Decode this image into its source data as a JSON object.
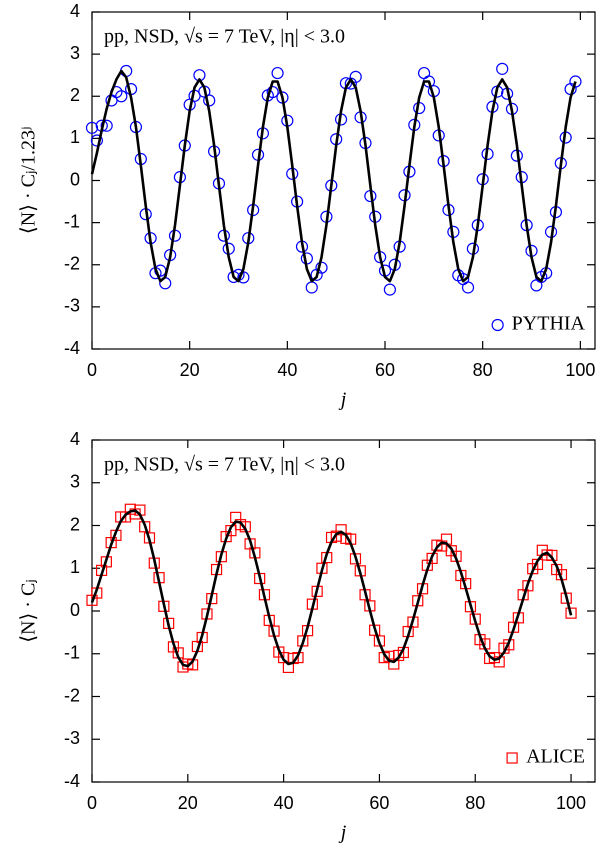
{
  "chart_data": [
    {
      "type": "scatter",
      "annotation": "pp, NSD, √s = 7 TeV, |η| < 3.0",
      "x_label": "j",
      "y_label": "⟨N⟩ · Cⱼ/1.23ʲ",
      "xlim": [
        0,
        103
      ],
      "ylim": [
        -4,
        4
      ],
      "xticks": [
        0,
        20,
        40,
        60,
        80,
        100
      ],
      "yticks": [
        -4,
        -3,
        -2,
        -1,
        0,
        1,
        2,
        3,
        4
      ],
      "legend": "lower right",
      "series": [
        {
          "name": "PYTHIA",
          "color": "#0000ff",
          "marker": "circle",
          "x": [
            0,
            1,
            2,
            3,
            4,
            5,
            6,
            7,
            8,
            9,
            10,
            11,
            12,
            13,
            14,
            15,
            16,
            17,
            18,
            19,
            20,
            21,
            22,
            23,
            24,
            25,
            26,
            27,
            28,
            29,
            30,
            31,
            32,
            33,
            34,
            35,
            36,
            37,
            38,
            39,
            40,
            41,
            42,
            43,
            44,
            45,
            46,
            47,
            48,
            49,
            50,
            51,
            52,
            53,
            54,
            55,
            56,
            57,
            58,
            59,
            60,
            61,
            62,
            63,
            64,
            65,
            66,
            67,
            68,
            69,
            70,
            71,
            72,
            73,
            74,
            75,
            76,
            77,
            78,
            79,
            80,
            81,
            82,
            83,
            84,
            85,
            86,
            87,
            88,
            89,
            90,
            91,
            92,
            93,
            94,
            95,
            96,
            97,
            98,
            99
          ],
          "values": [
            1.25,
            0.95,
            1.3,
            1.3,
            1.9,
            2.1,
            2.0,
            2.6,
            2.17,
            1.27,
            0.51,
            -0.8,
            -1.37,
            -2.2,
            -2.14,
            -2.44,
            -1.77,
            -1.31,
            0.08,
            0.83,
            1.8,
            2.01,
            2.5,
            2.11,
            1.9,
            0.69,
            -0.07,
            -1.31,
            -1.62,
            -2.29,
            -2.24,
            -2.3,
            -1.37,
            -0.7,
            0.61,
            1.12,
            2.02,
            2.1,
            2.55,
            1.97,
            1.42,
            0.16,
            -0.5,
            -1.57,
            -1.85,
            -2.54,
            -2.24,
            -2.07,
            -0.86,
            -0.12,
            0.98,
            1.45,
            2.31,
            2.3,
            2.46,
            1.5,
            0.89,
            -0.37,
            -0.86,
            -1.82,
            -2.14,
            -2.59,
            -2.0,
            -1.57,
            -0.35,
            0.21,
            1.32,
            1.72,
            2.55,
            2.35,
            2.12,
            1.07,
            0.46,
            -0.7,
            -1.22,
            -2.25,
            -2.34,
            -2.54,
            -1.62,
            -1.06,
            0.03,
            0.63,
            1.75,
            2.11,
            2.65,
            2.06,
            1.7,
            0.59,
            0.08,
            -1.06,
            -1.67,
            -2.49,
            -2.29,
            -2.2,
            -1.22,
            -0.75,
            0.41,
            1.02,
            2.17,
            2.35
          ]
        },
        {
          "color": "#000000",
          "marker": "line",
          "x": [
            0,
            1,
            2,
            3,
            4,
            5,
            6,
            7,
            8,
            9,
            10,
            11,
            12,
            13,
            14,
            15,
            16,
            17,
            18,
            19,
            20,
            21,
            22,
            23,
            24,
            25,
            26,
            27,
            28,
            29,
            30,
            31,
            32,
            33,
            34,
            35,
            36,
            37,
            38,
            39,
            40,
            41,
            42,
            43,
            44,
            45,
            46,
            47,
            48,
            49,
            50,
            51,
            52,
            53,
            54,
            55,
            56,
            57,
            58,
            59,
            60,
            61,
            62,
            63,
            64,
            65,
            66,
            67,
            68,
            69,
            70,
            71,
            72,
            73,
            74,
            75,
            76,
            77,
            78,
            79,
            80,
            81,
            82,
            83,
            84,
            85,
            86,
            87,
            88,
            89,
            90,
            91,
            92,
            93,
            94,
            95,
            96,
            97,
            98,
            99
          ],
          "values": [
            0.15,
            0.65,
            1.2,
            1.7,
            2.1,
            2.4,
            2.6,
            2.45,
            1.97,
            1.27,
            0.36,
            -0.6,
            -1.47,
            -2.1,
            -2.39,
            -2.29,
            -1.82,
            -1.06,
            -0.12,
            0.83,
            1.65,
            2.21,
            2.4,
            2.21,
            1.65,
            0.84,
            -0.12,
            -1.06,
            -1.82,
            -2.29,
            -2.39,
            -2.1,
            -1.47,
            -0.6,
            0.36,
            1.27,
            1.97,
            2.35,
            2.35,
            1.97,
            1.27,
            0.36,
            -0.6,
            -1.47,
            -2.1,
            -2.39,
            -2.29,
            -1.82,
            -1.06,
            -0.12,
            0.83,
            1.65,
            2.21,
            2.4,
            2.21,
            1.65,
            0.84,
            -0.12,
            -1.06,
            -1.82,
            -2.29,
            -2.39,
            -2.1,
            -1.47,
            -0.6,
            0.36,
            1.27,
            1.97,
            2.35,
            2.35,
            1.97,
            1.27,
            0.36,
            -0.6,
            -1.47,
            -2.1,
            -2.39,
            -2.29,
            -1.82,
            -1.06,
            -0.12,
            0.83,
            1.65,
            2.21,
            2.4,
            2.21,
            1.65,
            0.84,
            -0.12,
            -1.06,
            -1.82,
            -2.29,
            -2.39,
            -2.1,
            -1.47,
            -0.6,
            0.36,
            1.27,
            1.97,
            2.35
          ]
        }
      ]
    },
    {
      "type": "scatter",
      "annotation": "pp, NSD, √s = 7 TeV, |η| < 3.0",
      "x_label": "j",
      "y_label": "⟨N⟩ · Cⱼ",
      "xlim": [
        0,
        105
      ],
      "ylim": [
        -4,
        4
      ],
      "xticks": [
        0,
        20,
        40,
        60,
        80,
        100
      ],
      "yticks": [
        -4,
        -3,
        -2,
        -1,
        0,
        1,
        2,
        3,
        4
      ],
      "legend": "lower right",
      "series": [
        {
          "name": "ALICE",
          "color": "#ff0000",
          "marker": "square",
          "x": [
            0,
            1,
            2,
            3,
            4,
            5,
            6,
            7,
            8,
            9,
            10,
            11,
            12,
            13,
            14,
            15,
            16,
            17,
            18,
            19,
            20,
            21,
            22,
            23,
            24,
            25,
            26,
            27,
            28,
            29,
            30,
            31,
            32,
            33,
            34,
            35,
            36,
            37,
            38,
            39,
            40,
            41,
            42,
            43,
            44,
            45,
            46,
            47,
            48,
            49,
            50,
            51,
            52,
            53,
            54,
            55,
            56,
            57,
            58,
            59,
            60,
            61,
            62,
            63,
            64,
            65,
            66,
            67,
            68,
            69,
            70,
            71,
            72,
            73,
            74,
            75,
            76,
            77,
            78,
            79,
            80,
            81,
            82,
            83,
            84,
            85,
            86,
            87,
            88,
            89,
            90,
            91,
            92,
            93,
            94,
            95,
            96,
            97,
            98,
            99,
            100
          ],
          "values": [
            0.25,
            0.42,
            0.95,
            1.15,
            1.6,
            1.77,
            2.2,
            2.2,
            2.38,
            2.27,
            2.36,
            1.97,
            1.71,
            1.12,
            0.78,
            0.11,
            -0.29,
            -0.84,
            -0.98,
            -1.31,
            -1.24,
            -1.26,
            -0.83,
            -0.62,
            -0.07,
            0.29,
            0.97,
            1.27,
            1.74,
            1.88,
            2.19,
            2.02,
            1.97,
            1.57,
            1.36,
            0.76,
            0.38,
            -0.22,
            -0.47,
            -0.96,
            -1.09,
            -1.32,
            -1.11,
            -1.09,
            -0.7,
            -0.46,
            0.16,
            0.46,
            1.0,
            1.25,
            1.72,
            1.75,
            1.9,
            1.7,
            1.68,
            1.22,
            0.94,
            0.38,
            0.12,
            -0.45,
            -0.7,
            -1.09,
            -1.06,
            -1.24,
            -1.04,
            -0.97,
            -0.48,
            -0.26,
            0.24,
            0.52,
            1.07,
            1.23,
            1.54,
            1.52,
            1.68,
            1.41,
            1.28,
            0.83,
            0.64,
            0.1,
            -0.19,
            -0.67,
            -0.77,
            -1.11,
            -1.09,
            -1.19,
            -0.87,
            -0.79,
            -0.38,
            -0.16,
            0.38,
            0.59,
            0.99,
            1.09,
            1.42,
            1.31,
            1.3,
            0.97,
            0.85,
            0.3,
            -0.05
          ]
        },
        {
          "color": "#000000",
          "marker": "line",
          "x": [
            0,
            1,
            2,
            3,
            4,
            5,
            6,
            7,
            8,
            9,
            10,
            11,
            12,
            13,
            14,
            15,
            16,
            17,
            18,
            19,
            20,
            21,
            22,
            23,
            24,
            25,
            26,
            27,
            28,
            29,
            30,
            31,
            32,
            33,
            34,
            35,
            36,
            37,
            38,
            39,
            40,
            41,
            42,
            43,
            44,
            45,
            46,
            47,
            48,
            49,
            50,
            51,
            52,
            53,
            54,
            55,
            56,
            57,
            58,
            59,
            60,
            61,
            62,
            63,
            64,
            65,
            66,
            67,
            68,
            69,
            70,
            71,
            72,
            73,
            74,
            75,
            76,
            77,
            78,
            79,
            80,
            81,
            82,
            83,
            84,
            85,
            86,
            87,
            88,
            89,
            90,
            91,
            92,
            93,
            94,
            95,
            96,
            97,
            98,
            99,
            100
          ],
          "values": [
            0.2,
            0.5,
            0.85,
            1.2,
            1.55,
            1.85,
            2.1,
            2.25,
            2.33,
            2.35,
            2.26,
            2.02,
            1.66,
            1.2,
            0.68,
            0.16,
            -0.34,
            -0.76,
            -1.08,
            -1.26,
            -1.29,
            -1.18,
            -0.93,
            -0.57,
            -0.12,
            0.37,
            0.87,
            1.32,
            1.69,
            1.96,
            2.09,
            2.07,
            1.92,
            1.65,
            1.26,
            0.81,
            0.33,
            -0.14,
            -0.57,
            -0.91,
            -1.14,
            -1.24,
            -1.21,
            -1.04,
            -0.75,
            -0.38,
            0.06,
            0.51,
            0.95,
            1.33,
            1.62,
            1.8,
            1.85,
            1.78,
            1.58,
            1.27,
            0.89,
            0.46,
            0.02,
            -0.4,
            -0.75,
            -1.01,
            -1.16,
            -1.19,
            -1.09,
            -0.89,
            -0.58,
            -0.21,
            0.19,
            0.6,
            0.97,
            1.28,
            1.49,
            1.6,
            1.58,
            1.46,
            1.23,
            0.91,
            0.54,
            0.15,
            -0.24,
            -0.59,
            -0.87,
            -1.06,
            -1.14,
            -1.11,
            -0.97,
            -0.74,
            -0.43,
            -0.08,
            0.28,
            0.64,
            0.94,
            1.17,
            1.32,
            1.36,
            1.25,
            1.05,
            0.75,
            0.35,
            -0.1
          ]
        }
      ]
    }
  ]
}
